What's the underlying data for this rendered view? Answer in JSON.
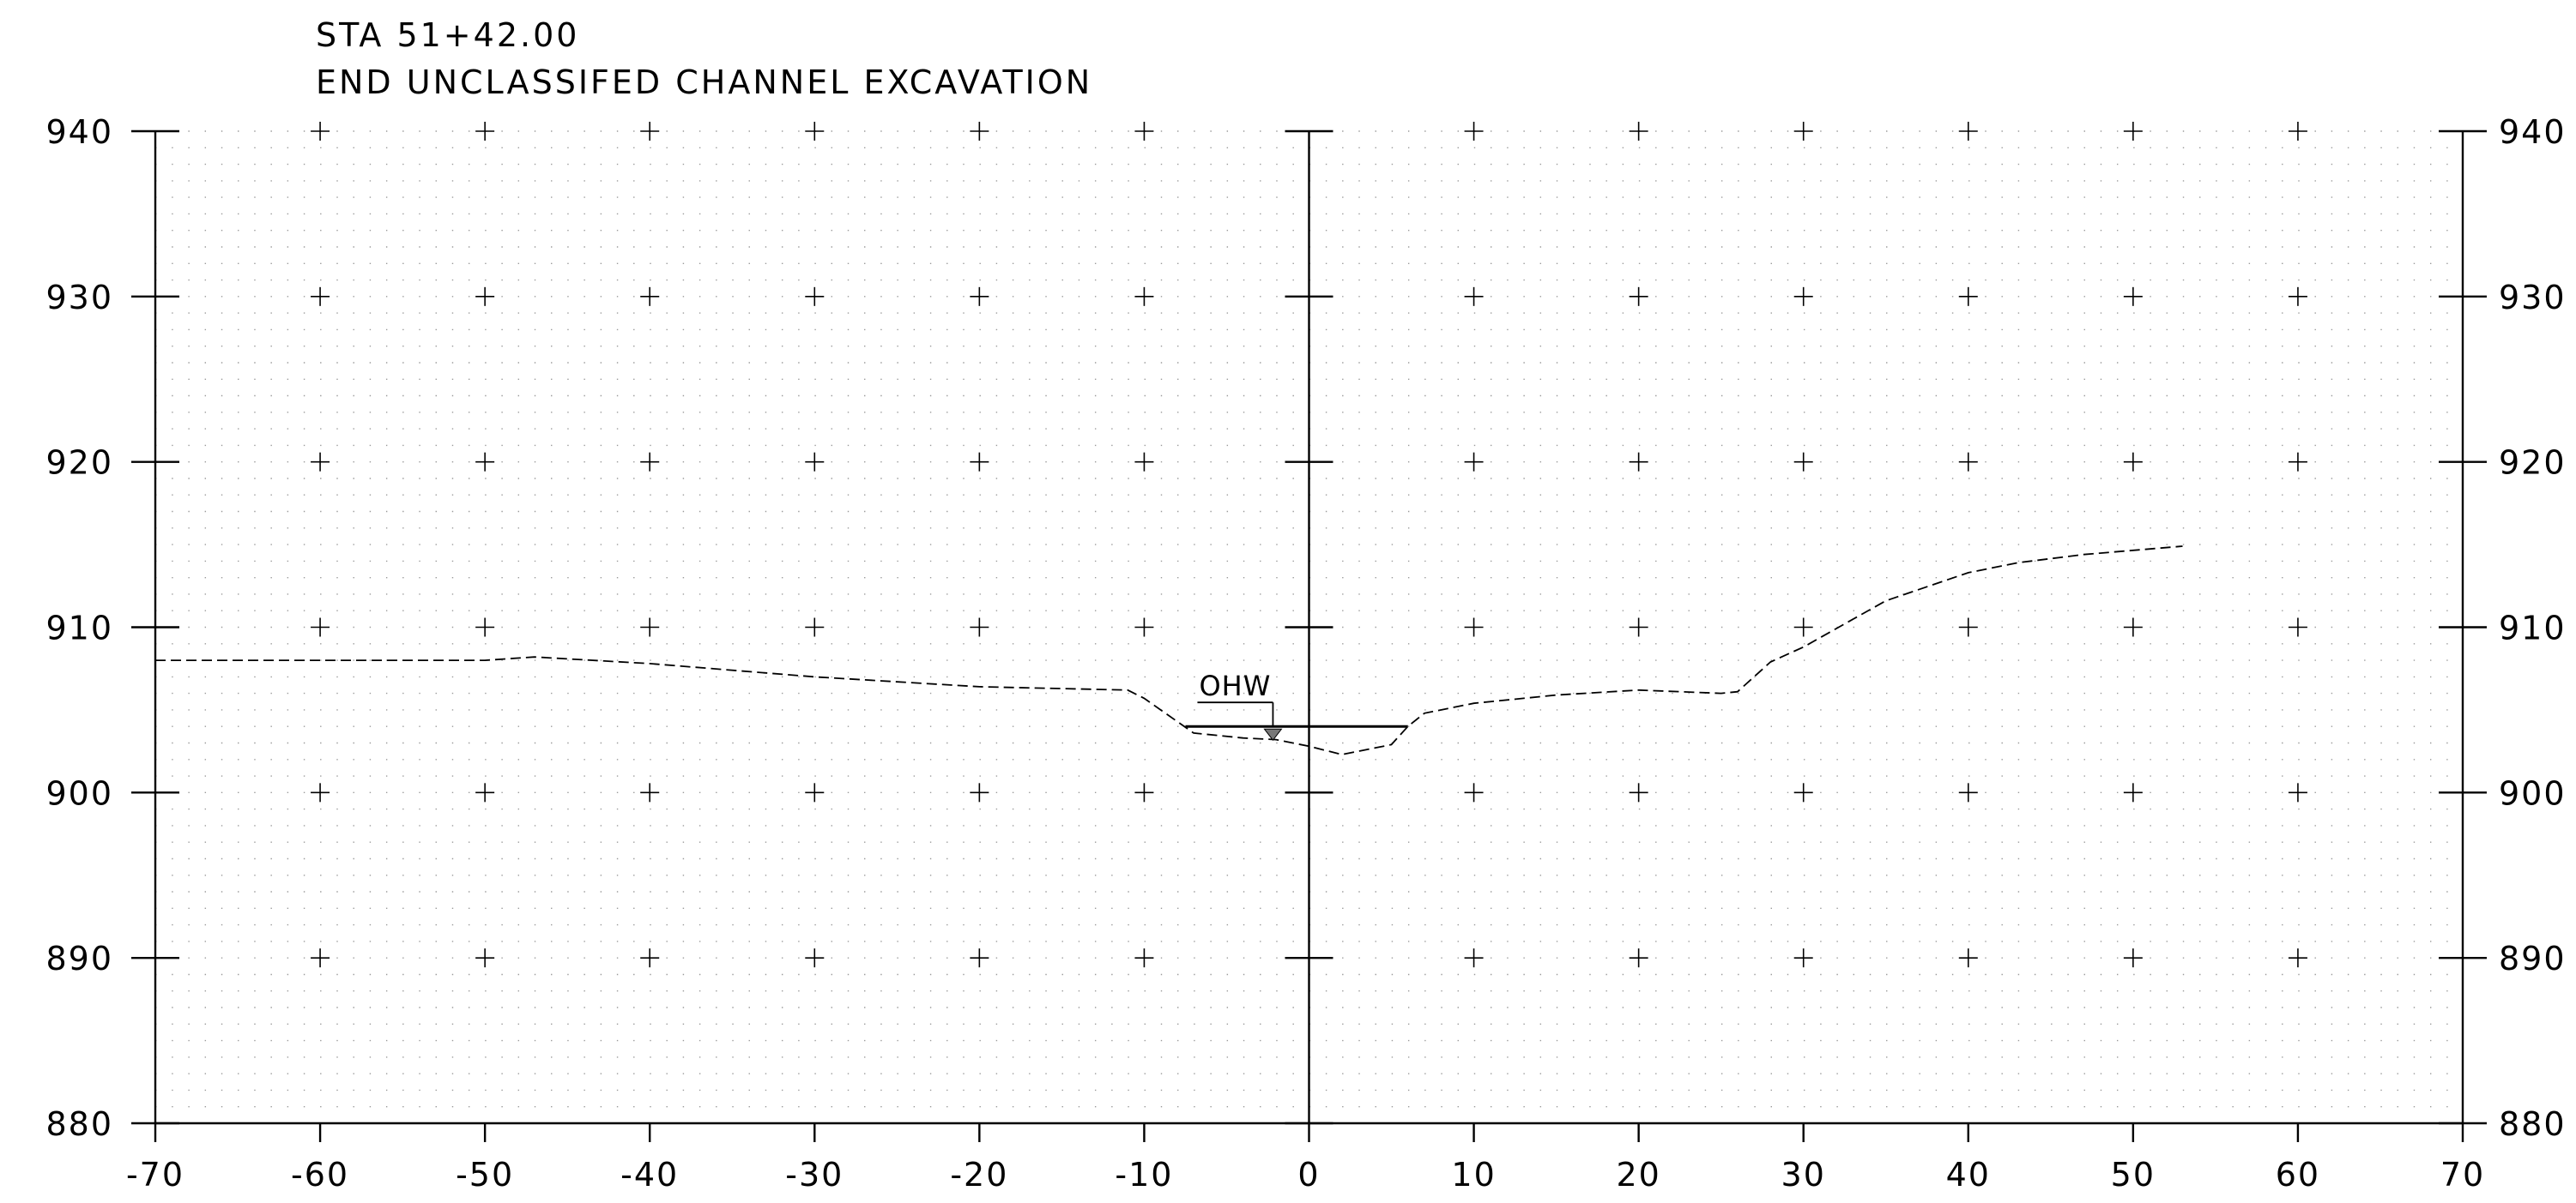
{
  "title": {
    "station": "STA 51+42.00",
    "description": "END UNCLASSIFED CHANNEL EXCAVATION"
  },
  "colors": {
    "line": "#000000",
    "grid_dot": "#9a9a9a",
    "background": "#ffffff"
  },
  "chart_data": {
    "type": "line",
    "xlim": [
      -70,
      70
    ],
    "ylim": [
      880,
      940
    ],
    "x_ticks": [
      -70,
      -60,
      -50,
      -40,
      -30,
      -20,
      -10,
      0,
      10,
      20,
      30,
      40,
      50,
      60,
      70
    ],
    "x_tick_labels": [
      "-70",
      "-60",
      "-50",
      "-40",
      "-30",
      "-20",
      "-10",
      "0",
      "10",
      "20",
      "30",
      "40",
      "50",
      "60",
      "70"
    ],
    "y_ticks": [
      880,
      890,
      900,
      910,
      920,
      930,
      940
    ],
    "y_tick_labels_left": [
      "880",
      "890",
      "900",
      "910",
      "920",
      "930",
      "940"
    ],
    "y_tick_labels_right": [
      "880",
      "890",
      "900",
      "910",
      "920",
      "930",
      "940"
    ],
    "grid": "dotted with cross markers",
    "series": [
      {
        "style": "dashed",
        "x": [
          -70,
          -60,
          -50,
          -47,
          -40,
          -30,
          -20,
          -11,
          -10,
          -7,
          -4,
          -2,
          0,
          2,
          4,
          5,
          6,
          7,
          10,
          15,
          20,
          25,
          26,
          28,
          30,
          35,
          40,
          43,
          47,
          53
        ],
        "y": [
          908,
          908,
          908,
          908.2,
          907.8,
          907,
          906.4,
          906.2,
          905.7,
          903.6,
          903.3,
          903.2,
          902.8,
          902.3,
          902.7,
          902.9,
          904,
          904.8,
          905.4,
          905.9,
          906.2,
          906,
          906.1,
          907.9,
          908.8,
          911.6,
          913.3,
          913.9,
          914.4,
          914.9
        ]
      }
    ],
    "water_line": {
      "label": "OHW",
      "x_start": -7.5,
      "x_end": 6,
      "y": 904
    }
  }
}
